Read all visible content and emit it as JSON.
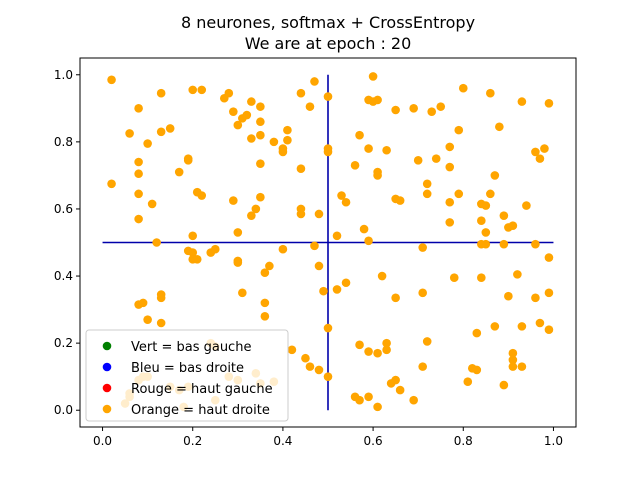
{
  "chart_data": {
    "type": "scatter",
    "title": "8 neurones, softmax + CrossEntropy",
    "subtitle": "We are at epoch : 20",
    "xlim": [
      -0.05,
      1.05
    ],
    "ylim": [
      -0.05,
      1.05
    ],
    "x_ticks": [
      "0.0",
      "0.2",
      "0.4",
      "0.6",
      "0.8",
      "1.0"
    ],
    "y_ticks": [
      "0.0",
      "0.2",
      "0.4",
      "0.6",
      "0.8",
      "1.0"
    ],
    "grid": false,
    "legend_placement": "lower-left",
    "legend": [
      {
        "label": "Vert = bas gauche",
        "color": "#008000"
      },
      {
        "label": "Bleu = bas droite",
        "color": "#0000ff"
      },
      {
        "label": "Rouge = haut gauche",
        "color": "#ff0000"
      },
      {
        "label": "Orange = haut droite",
        "color": "#ffa500"
      }
    ],
    "reference_lines": [
      {
        "orientation": "vertical",
        "x": 0.5,
        "y_range": [
          0,
          1
        ],
        "color": "#0000aa"
      },
      {
        "orientation": "horizontal",
        "y": 0.5,
        "x_range": [
          0,
          1
        ],
        "color": "#0000aa"
      }
    ],
    "series": [
      {
        "color": "#ffa500",
        "points": [
          [
            0.02,
            0.985
          ],
          [
            0.08,
            0.9
          ],
          [
            0.13,
            0.945
          ],
          [
            0.06,
            0.825
          ],
          [
            0.13,
            0.83
          ],
          [
            0.15,
            0.84
          ],
          [
            0.1,
            0.795
          ],
          [
            0.08,
            0.74
          ],
          [
            0.08,
            0.705
          ],
          [
            0.02,
            0.675
          ],
          [
            0.08,
            0.645
          ],
          [
            0.11,
            0.615
          ],
          [
            0.08,
            0.57
          ],
          [
            0.12,
            0.5
          ],
          [
            0.19,
            0.745
          ],
          [
            0.19,
            0.75
          ],
          [
            0.17,
            0.71
          ],
          [
            0.21,
            0.65
          ],
          [
            0.22,
            0.64
          ],
          [
            0.2,
            0.955
          ],
          [
            0.22,
            0.955
          ],
          [
            0.27,
            0.93
          ],
          [
            0.28,
            0.945
          ],
          [
            0.29,
            0.89
          ],
          [
            0.3,
            0.85
          ],
          [
            0.31,
            0.87
          ],
          [
            0.32,
            0.88
          ],
          [
            0.33,
            0.92
          ],
          [
            0.35,
            0.905
          ],
          [
            0.35,
            0.86
          ],
          [
            0.33,
            0.81
          ],
          [
            0.35,
            0.82
          ],
          [
            0.38,
            0.8
          ],
          [
            0.4,
            0.78
          ],
          [
            0.4,
            0.77
          ],
          [
            0.41,
            0.805
          ],
          [
            0.41,
            0.835
          ],
          [
            0.44,
            0.945
          ],
          [
            0.46,
            0.905
          ],
          [
            0.47,
            0.98
          ],
          [
            0.35,
            0.735
          ],
          [
            0.29,
            0.625
          ],
          [
            0.35,
            0.635
          ],
          [
            0.34,
            0.6
          ],
          [
            0.33,
            0.58
          ],
          [
            0.3,
            0.53
          ],
          [
            0.2,
            0.52
          ],
          [
            0.19,
            0.475
          ],
          [
            0.2,
            0.47
          ],
          [
            0.2,
            0.45
          ],
          [
            0.21,
            0.45
          ],
          [
            0.24,
            0.47
          ],
          [
            0.25,
            0.48
          ],
          [
            0.3,
            0.445
          ],
          [
            0.3,
            0.44
          ],
          [
            0.37,
            0.43
          ],
          [
            0.36,
            0.41
          ],
          [
            0.4,
            0.48
          ],
          [
            0.44,
            0.72
          ],
          [
            0.44,
            0.6
          ],
          [
            0.44,
            0.585
          ],
          [
            0.48,
            0.585
          ],
          [
            0.47,
            0.49
          ],
          [
            0.48,
            0.43
          ],
          [
            0.49,
            0.355
          ],
          [
            0.52,
            0.36
          ],
          [
            0.52,
            0.52
          ],
          [
            0.5,
            0.935
          ],
          [
            0.5,
            0.78
          ],
          [
            0.5,
            0.77
          ],
          [
            0.53,
            0.64
          ],
          [
            0.54,
            0.62
          ],
          [
            0.56,
            0.73
          ],
          [
            0.57,
            0.82
          ],
          [
            0.59,
            0.78
          ],
          [
            0.59,
            0.925
          ],
          [
            0.6,
            0.995
          ],
          [
            0.6,
            0.92
          ],
          [
            0.61,
            0.925
          ],
          [
            0.63,
            0.775
          ],
          [
            0.61,
            0.7
          ],
          [
            0.61,
            0.71
          ],
          [
            0.65,
            0.895
          ],
          [
            0.65,
            0.63
          ],
          [
            0.66,
            0.625
          ],
          [
            0.69,
            0.9
          ],
          [
            0.7,
            0.745
          ],
          [
            0.72,
            0.645
          ],
          [
            0.72,
            0.675
          ],
          [
            0.73,
            0.89
          ],
          [
            0.74,
            0.75
          ],
          [
            0.75,
            0.905
          ],
          [
            0.77,
            0.785
          ],
          [
            0.77,
            0.725
          ],
          [
            0.77,
            0.62
          ],
          [
            0.77,
            0.56
          ],
          [
            0.79,
            0.645
          ],
          [
            0.79,
            0.835
          ],
          [
            0.8,
            0.96
          ],
          [
            0.84,
            0.615
          ],
          [
            0.84,
            0.565
          ],
          [
            0.85,
            0.61
          ],
          [
            0.85,
            0.53
          ],
          [
            0.85,
            0.495
          ],
          [
            0.86,
            0.945
          ],
          [
            0.86,
            0.645
          ],
          [
            0.87,
            0.7
          ],
          [
            0.88,
            0.845
          ],
          [
            0.89,
            0.58
          ],
          [
            0.9,
            0.545
          ],
          [
            0.89,
            0.495
          ],
          [
            0.91,
            0.55
          ],
          [
            0.93,
            0.92
          ],
          [
            0.94,
            0.61
          ],
          [
            0.96,
            0.77
          ],
          [
            0.97,
            0.75
          ],
          [
            0.98,
            0.78
          ],
          [
            0.99,
            0.915
          ],
          [
            0.96,
            0.495
          ],
          [
            0.99,
            0.455
          ],
          [
            0.54,
            0.38
          ],
          [
            0.58,
            0.54
          ],
          [
            0.59,
            0.505
          ],
          [
            0.62,
            0.4
          ],
          [
            0.65,
            0.335
          ],
          [
            0.71,
            0.35
          ],
          [
            0.71,
            0.485
          ],
          [
            0.78,
            0.395
          ],
          [
            0.83,
            0.23
          ],
          [
            0.84,
            0.495
          ],
          [
            0.84,
            0.395
          ],
          [
            0.87,
            0.25
          ],
          [
            0.9,
            0.34
          ],
          [
            0.92,
            0.405
          ],
          [
            0.93,
            0.25
          ],
          [
            0.96,
            0.335
          ],
          [
            0.97,
            0.26
          ],
          [
            0.99,
            0.24
          ],
          [
            0.99,
            0.35
          ],
          [
            0.57,
            0.195
          ],
          [
            0.59,
            0.175
          ],
          [
            0.61,
            0.17
          ],
          [
            0.63,
            0.2
          ],
          [
            0.63,
            0.18
          ],
          [
            0.5,
            0.245
          ],
          [
            0.42,
            0.18
          ],
          [
            0.45,
            0.155
          ],
          [
            0.46,
            0.13
          ],
          [
            0.48,
            0.12
          ],
          [
            0.5,
            0.1
          ],
          [
            0.56,
            0.04
          ],
          [
            0.57,
            0.03
          ],
          [
            0.59,
            0.04
          ],
          [
            0.61,
            0.01
          ],
          [
            0.64,
            0.08
          ],
          [
            0.65,
            0.09
          ],
          [
            0.66,
            0.06
          ],
          [
            0.69,
            0.03
          ],
          [
            0.71,
            0.13
          ],
          [
            0.72,
            0.205
          ],
          [
            0.81,
            0.085
          ],
          [
            0.82,
            0.125
          ],
          [
            0.83,
            0.12
          ],
          [
            0.89,
            0.075
          ],
          [
            0.91,
            0.17
          ],
          [
            0.91,
            0.15
          ],
          [
            0.91,
            0.13
          ],
          [
            0.93,
            0.13
          ],
          [
            0.09,
            0.32
          ],
          [
            0.08,
            0.315
          ],
          [
            0.13,
            0.345
          ],
          [
            0.13,
            0.335
          ],
          [
            0.1,
            0.27
          ],
          [
            0.13,
            0.26
          ],
          [
            0.24,
            0.2
          ],
          [
            0.25,
            0.19
          ],
          [
            0.36,
            0.32
          ],
          [
            0.36,
            0.28
          ],
          [
            0.31,
            0.35
          ],
          [
            0.28,
            0.1
          ],
          [
            0.3,
            0.09
          ],
          [
            0.34,
            0.11
          ],
          [
            0.38,
            0.085
          ],
          [
            0.35,
            0.08
          ],
          [
            0.25,
            0.03
          ],
          [
            0.06,
            0.05
          ],
          [
            0.06,
            0.04
          ],
          [
            0.05,
            0.02
          ],
          [
            0.08,
            0.09
          ],
          [
            0.09,
            0.1
          ],
          [
            0.1,
            0.1
          ],
          [
            0.15,
            0.07
          ],
          [
            0.17,
            0.06
          ],
          [
            0.18,
            0.01
          ],
          [
            0.19,
            0.07
          ]
        ]
      }
    ]
  }
}
